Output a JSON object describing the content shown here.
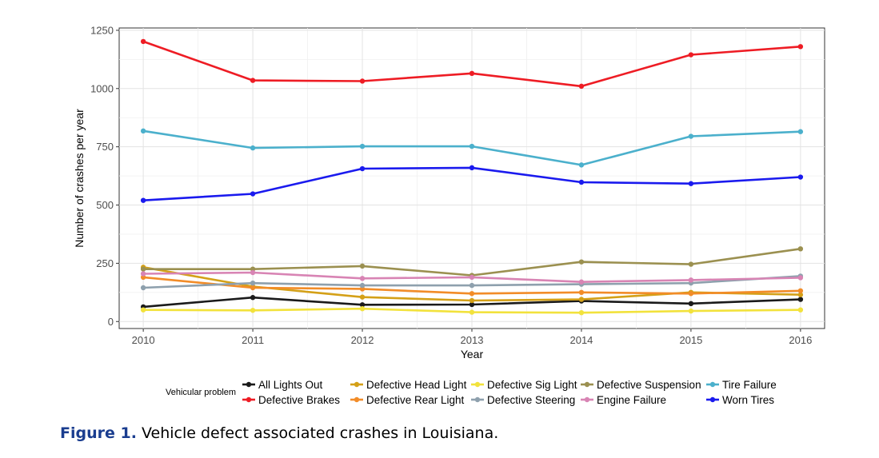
{
  "figure": {
    "label": "Figure 1.",
    "text": "Vehicle defect associated crashes in Louisiana."
  },
  "chart_data": {
    "type": "line",
    "title": "",
    "xlabel": "Year",
    "ylabel": "Number of crashes per year",
    "x": [
      2010,
      2011,
      2012,
      2013,
      2014,
      2015,
      2016
    ],
    "x_ticks": [
      "2010",
      "2011",
      "2012",
      "2013",
      "2014",
      "2015",
      "2016"
    ],
    "y_ticks": [
      "0",
      "250",
      "500",
      "750",
      "1000",
      "1250"
    ],
    "y_tick_values": [
      0,
      250,
      500,
      750,
      1000,
      1250
    ],
    "ylim": [
      -30,
      1260
    ],
    "grid": true,
    "legend_title": "Vehicular problem",
    "legend_position": "bottom",
    "series": [
      {
        "name": "All Lights Out",
        "color": "#1a1a1a",
        "values": [
          63,
          103,
          72,
          73,
          88,
          77,
          95
        ]
      },
      {
        "name": "Defective Brakes",
        "color": "#ee1c24",
        "values": [
          1202,
          1035,
          1032,
          1065,
          1010,
          1145,
          1180
        ]
      },
      {
        "name": "Defective Head Light",
        "color": "#d4a017",
        "values": [
          233,
          150,
          105,
          90,
          95,
          125,
          115
        ]
      },
      {
        "name": "Defective Rear Light",
        "color": "#f28c28",
        "values": [
          190,
          145,
          140,
          120,
          125,
          120,
          132
        ]
      },
      {
        "name": "Defective Sig Light",
        "color": "#f2e23c",
        "values": [
          50,
          48,
          55,
          40,
          38,
          45,
          50
        ]
      },
      {
        "name": "Defective Steering",
        "color": "#8ea0ad",
        "values": [
          145,
          165,
          155,
          155,
          160,
          165,
          195
        ]
      },
      {
        "name": "Defective Suspension",
        "color": "#9b9050",
        "values": [
          225,
          225,
          238,
          198,
          256,
          246,
          312
        ]
      },
      {
        "name": "Engine Failure",
        "color": "#d884b4",
        "values": [
          205,
          210,
          185,
          190,
          170,
          178,
          188
        ]
      },
      {
        "name": "Tire Failure",
        "color": "#4bb0cc",
        "values": [
          818,
          745,
          752,
          752,
          672,
          795,
          815
        ]
      },
      {
        "name": "Worn Tires",
        "color": "#1a1aee",
        "values": [
          520,
          548,
          656,
          660,
          598,
          592,
          620
        ]
      }
    ]
  }
}
